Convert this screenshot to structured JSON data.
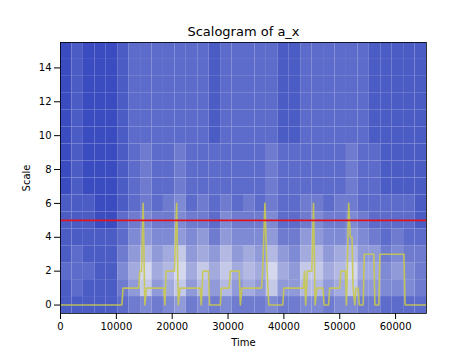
{
  "chart_data": {
    "type": "heatmap",
    "title": "Scalogram of a_x",
    "x_label": "Time",
    "y_label": "Scale",
    "xlim": [
      0,
      65536
    ],
    "ylim": [
      -0.5,
      15.5
    ],
    "xticks": [
      0,
      10000,
      20000,
      30000,
      40000,
      50000,
      60000
    ],
    "yticks": [
      0,
      2,
      4,
      6,
      8,
      10,
      12,
      14
    ],
    "cells": {
      "x_bins": [
        0,
        2048,
        4096,
        6144,
        8192,
        10240,
        12288,
        14336,
        16384,
        18432,
        20480,
        22528,
        24576,
        26624,
        28672,
        30720,
        32768,
        34816,
        36864,
        38912,
        40960,
        43008,
        45056,
        47104,
        49152,
        51200,
        53248,
        55296,
        57344,
        59392,
        61440,
        63488,
        65536
      ],
      "y_bins": [
        -0.5,
        0.5,
        1.5,
        2.5,
        3.5,
        4.5,
        5.5,
        6.5,
        7.5,
        8.5,
        9.5,
        10.5,
        11.5,
        12.5,
        13.5,
        14.5,
        15.5
      ],
      "zlim": [
        0,
        1
      ],
      "values": [
        [
          0.1,
          0.1,
          0.1,
          0.1,
          0.1,
          0.2,
          0.3,
          0.4,
          0.3,
          0.4,
          0.5,
          0.3,
          0.4,
          0.3,
          0.4,
          0.3,
          0.3,
          0.3,
          0.4,
          0.3,
          0.3,
          0.4,
          0.4,
          0.3,
          0.4,
          0.4,
          0.3,
          0.3,
          0.2,
          0.2,
          0.2,
          0.2
        ],
        [
          0.1,
          0.2,
          0.1,
          0.1,
          0.1,
          0.3,
          0.5,
          0.8,
          0.5,
          0.6,
          0.8,
          0.5,
          0.7,
          0.5,
          0.7,
          0.5,
          0.6,
          0.5,
          0.8,
          0.5,
          0.5,
          0.7,
          0.7,
          0.5,
          0.6,
          0.8,
          0.5,
          0.5,
          0.4,
          0.4,
          0.4,
          0.3
        ],
        [
          0.2,
          0.2,
          0.2,
          0.1,
          0.1,
          0.4,
          0.6,
          0.9,
          0.6,
          0.7,
          0.9,
          0.6,
          0.8,
          0.6,
          0.8,
          0.6,
          0.7,
          0.6,
          0.9,
          0.6,
          0.5,
          0.8,
          0.8,
          0.6,
          0.7,
          0.9,
          0.6,
          0.6,
          0.4,
          0.5,
          0.4,
          0.3
        ],
        [
          0.1,
          0.2,
          0.1,
          0.1,
          0.1,
          0.3,
          0.5,
          0.7,
          0.5,
          0.6,
          0.8,
          0.5,
          0.6,
          0.5,
          0.7,
          0.5,
          0.6,
          0.5,
          0.7,
          0.5,
          0.4,
          0.6,
          0.7,
          0.5,
          0.6,
          0.7,
          0.5,
          0.5,
          0.3,
          0.4,
          0.3,
          0.3
        ],
        [
          0.1,
          0.1,
          0.1,
          0.1,
          0.1,
          0.2,
          0.4,
          0.5,
          0.4,
          0.4,
          0.5,
          0.4,
          0.5,
          0.3,
          0.5,
          0.4,
          0.4,
          0.4,
          0.5,
          0.3,
          0.3,
          0.5,
          0.5,
          0.4,
          0.4,
          0.5,
          0.4,
          0.3,
          0.2,
          0.3,
          0.2,
          0.2
        ],
        [
          0.1,
          0.1,
          0.1,
          0.0,
          0.0,
          0.2,
          0.3,
          0.4,
          0.3,
          0.3,
          0.4,
          0.3,
          0.3,
          0.2,
          0.4,
          0.3,
          0.3,
          0.3,
          0.4,
          0.2,
          0.2,
          0.3,
          0.4,
          0.3,
          0.3,
          0.4,
          0.3,
          0.2,
          0.2,
          0.2,
          0.2,
          0.1
        ],
        [
          0.1,
          0.1,
          0.1,
          0.0,
          0.0,
          0.1,
          0.2,
          0.3,
          0.2,
          0.3,
          0.4,
          0.2,
          0.3,
          0.2,
          0.3,
          0.2,
          0.3,
          0.2,
          0.3,
          0.2,
          0.2,
          0.3,
          0.3,
          0.2,
          0.3,
          0.3,
          0.2,
          0.2,
          0.2,
          0.2,
          0.2,
          0.1
        ],
        [
          0.0,
          0.1,
          0.0,
          0.0,
          0.0,
          0.1,
          0.2,
          0.3,
          0.2,
          0.2,
          0.3,
          0.2,
          0.2,
          0.2,
          0.2,
          0.2,
          0.2,
          0.2,
          0.3,
          0.2,
          0.2,
          0.2,
          0.2,
          0.2,
          0.2,
          0.3,
          0.2,
          0.2,
          0.1,
          0.1,
          0.1,
          0.1
        ],
        [
          0.0,
          0.1,
          0.0,
          0.0,
          0.0,
          0.1,
          0.2,
          0.3,
          0.2,
          0.2,
          0.3,
          0.2,
          0.2,
          0.2,
          0.2,
          0.2,
          0.2,
          0.2,
          0.3,
          0.2,
          0.2,
          0.2,
          0.2,
          0.2,
          0.2,
          0.3,
          0.2,
          0.2,
          0.1,
          0.1,
          0.1,
          0.1
        ],
        [
          0.0,
          0.1,
          0.0,
          0.0,
          0.0,
          0.1,
          0.2,
          0.3,
          0.2,
          0.2,
          0.3,
          0.2,
          0.2,
          0.2,
          0.2,
          0.2,
          0.2,
          0.2,
          0.3,
          0.2,
          0.2,
          0.2,
          0.2,
          0.2,
          0.2,
          0.3,
          0.2,
          0.2,
          0.1,
          0.1,
          0.1,
          0.1
        ],
        [
          0.0,
          0.1,
          0.0,
          0.0,
          0.0,
          0.1,
          0.2,
          0.2,
          0.2,
          0.2,
          0.2,
          0.2,
          0.2,
          0.1,
          0.2,
          0.2,
          0.2,
          0.2,
          0.2,
          0.1,
          0.1,
          0.2,
          0.2,
          0.2,
          0.2,
          0.2,
          0.2,
          0.1,
          0.1,
          0.1,
          0.1,
          0.1
        ],
        [
          0.0,
          0.1,
          0.0,
          0.0,
          0.0,
          0.1,
          0.2,
          0.2,
          0.2,
          0.2,
          0.2,
          0.2,
          0.2,
          0.1,
          0.2,
          0.2,
          0.2,
          0.2,
          0.2,
          0.1,
          0.1,
          0.2,
          0.2,
          0.2,
          0.2,
          0.2,
          0.2,
          0.1,
          0.1,
          0.1,
          0.1,
          0.1
        ],
        [
          0.0,
          0.1,
          0.0,
          0.0,
          0.0,
          0.1,
          0.2,
          0.2,
          0.2,
          0.2,
          0.2,
          0.2,
          0.2,
          0.1,
          0.2,
          0.2,
          0.2,
          0.2,
          0.2,
          0.1,
          0.1,
          0.2,
          0.2,
          0.2,
          0.2,
          0.2,
          0.2,
          0.1,
          0.1,
          0.1,
          0.1,
          0.1
        ],
        [
          0.0,
          0.1,
          0.0,
          0.0,
          0.0,
          0.1,
          0.2,
          0.2,
          0.2,
          0.2,
          0.2,
          0.2,
          0.2,
          0.1,
          0.2,
          0.2,
          0.2,
          0.2,
          0.2,
          0.1,
          0.1,
          0.2,
          0.2,
          0.2,
          0.2,
          0.2,
          0.2,
          0.1,
          0.1,
          0.1,
          0.1,
          0.1
        ],
        [
          0.0,
          0.1,
          0.0,
          0.0,
          0.0,
          0.1,
          0.2,
          0.2,
          0.2,
          0.2,
          0.2,
          0.2,
          0.2,
          0.1,
          0.2,
          0.2,
          0.2,
          0.2,
          0.2,
          0.1,
          0.1,
          0.2,
          0.2,
          0.2,
          0.2,
          0.2,
          0.2,
          0.1,
          0.1,
          0.1,
          0.1,
          0.1
        ],
        [
          0.0,
          0.1,
          0.0,
          0.0,
          0.0,
          0.1,
          0.2,
          0.2,
          0.2,
          0.2,
          0.2,
          0.2,
          0.2,
          0.1,
          0.2,
          0.2,
          0.2,
          0.2,
          0.2,
          0.1,
          0.1,
          0.2,
          0.2,
          0.2,
          0.2,
          0.2,
          0.2,
          0.1,
          0.1,
          0.1,
          0.1,
          0.1
        ]
      ]
    },
    "series": [
      {
        "type": "line",
        "color": "#c8c850",
        "x": [
          0,
          11000,
          11200,
          14000,
          14200,
          14500,
          14800,
          15100,
          15400,
          18500,
          18700,
          18900,
          20400,
          20800,
          21100,
          21400,
          25000,
          25200,
          25500,
          26500,
          26700,
          28600,
          28800,
          30200,
          30400,
          32000,
          32200,
          32500,
          36000,
          36200,
          36600,
          37000,
          37300,
          39800,
          40000,
          43500,
          43700,
          43900,
          44200,
          45000,
          45300,
          45600,
          45900,
          47000,
          47200,
          48000,
          48200,
          50000,
          50200,
          51000,
          51200,
          51600,
          51900,
          52200,
          52400,
          52700,
          52900,
          53300,
          53500,
          54200,
          54400,
          56100,
          56300,
          57000,
          57200,
          61500,
          61700,
          65536
        ],
        "values": [
          0,
          0,
          1,
          1,
          2,
          2,
          6,
          0,
          1,
          1,
          0,
          2,
          2,
          6,
          0,
          1,
          1,
          0,
          2,
          2,
          0,
          0,
          1,
          1,
          2,
          2,
          0,
          1,
          1,
          2,
          6,
          2,
          0,
          0,
          1,
          1,
          2,
          0,
          2,
          2,
          6,
          0,
          1,
          1,
          0,
          0,
          1,
          1,
          2,
          2,
          0,
          6,
          4,
          4,
          1,
          0,
          1,
          1,
          0,
          0,
          3,
          3,
          0,
          0,
          3,
          3,
          0,
          0
        ]
      },
      {
        "type": "rule",
        "color": "#e0141e",
        "values": [
          5
        ]
      }
    ]
  }
}
